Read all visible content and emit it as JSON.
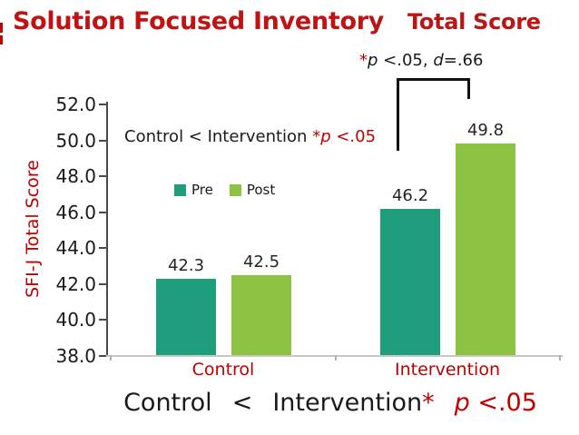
{
  "title": {
    "main": "Solution Focused Inventory",
    "sub": "Total Score"
  },
  "sig_note": {
    "star": "*",
    "p": "p",
    "p_tail": " <.05, ",
    "d": "d",
    "d_tail": "=.66"
  },
  "inplot_note": {
    "black": "Control < Intervention ",
    "star": "*",
    "p": "p",
    "tail": " <.05"
  },
  "legend": {
    "pre": "Pre",
    "post": "Post"
  },
  "y_axis_title": "SFI-J Total Score",
  "categories": {
    "control": "Control",
    "intervention": "Intervention"
  },
  "banner": {
    "left": "Control",
    "lt": "<",
    "right": "Intervention",
    "star": "*",
    "p": "p",
    "tail": " <.05"
  },
  "colors": {
    "title_red": "#BE1414",
    "red": "#C00000",
    "teal": "#1F9E7E",
    "green": "#8CC342",
    "axis": "#4A4A4A",
    "baseline": "#C8C8C8"
  },
  "chart_data": {
    "type": "bar",
    "categories": [
      "Control",
      "Intervention"
    ],
    "series": [
      {
        "name": "Pre",
        "values": [
          42.3,
          46.2
        ],
        "color": "#1F9E7E"
      },
      {
        "name": "Post",
        "values": [
          42.5,
          49.8
        ],
        "color": "#8CC342"
      }
    ],
    "title": "Solution Focused Inventory Total Score",
    "xlabel": "",
    "ylabel": "SFI-J Total Score",
    "ylim": [
      38.0,
      52.0
    ],
    "ytick_step": 2.0,
    "ytick_labels": [
      "38.0",
      "40.0",
      "42.0",
      "44.0",
      "46.0",
      "48.0",
      "50.0",
      "52.0"
    ],
    "grid": false,
    "legend_position": "inside-top-left",
    "annotations": [
      "*p <.05, d=.66",
      "Control < Intervention *p <.05",
      "Control < Intervention* p <.05"
    ]
  }
}
